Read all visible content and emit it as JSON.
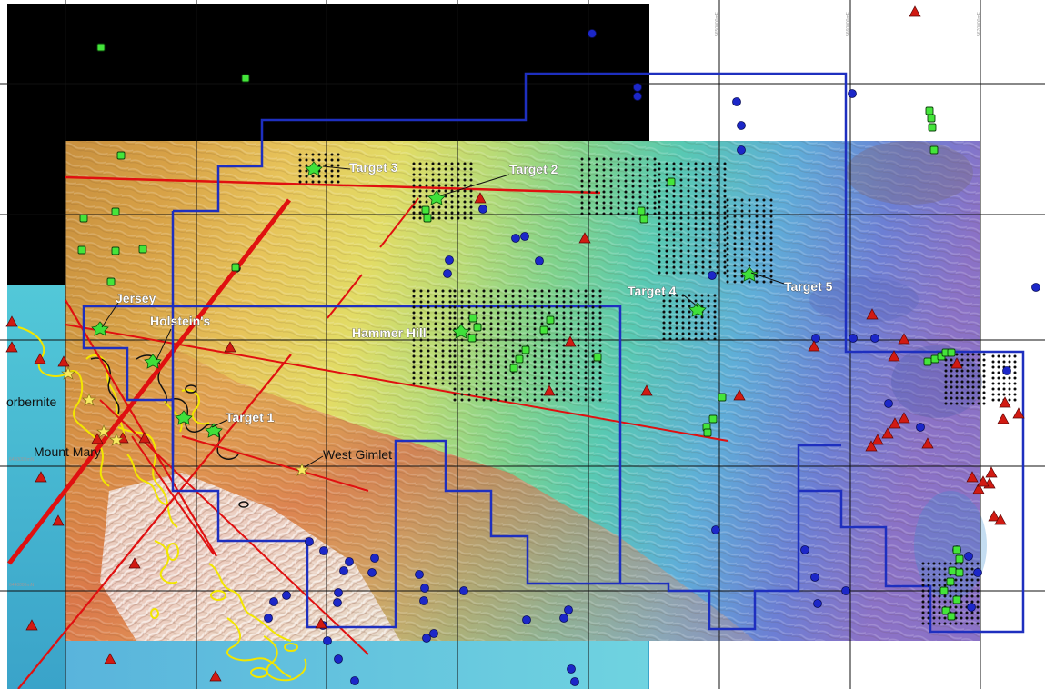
{
  "map": {
    "labels": {
      "target1": "Target 1",
      "target2": "Target 2",
      "target3": "Target 3",
      "target4": "Target 4",
      "target5": "Target 5",
      "jersey": "Jersey",
      "holsteins": "Holstein's",
      "hammer_hill": "Hammer Hill",
      "west_gimlet": "West Gimlet",
      "torbernite": "orbernite",
      "mount_mary": "Mount Mary"
    },
    "grid_tick_labels": [
      "5650000mE",
      "5660000mE",
      "5670000mE",
      "6450000mN",
      "6440000mN"
    ],
    "colors": {
      "tenement_boundary": "#1e2fbf",
      "structures": "#e01010",
      "radiometric_contour": "#f2e600",
      "drillhole_blue": "#1c27c8",
      "drillhole_green": "#44e53a",
      "anomaly_triangle": "#d11a12",
      "prospect_star": "#f7ea60",
      "grid": "#111111"
    },
    "symbols": [
      "blue-circle-icon",
      "green-square-icon",
      "red-triangle-icon",
      "yellow-star-icon",
      "black-dot-icon"
    ]
  }
}
